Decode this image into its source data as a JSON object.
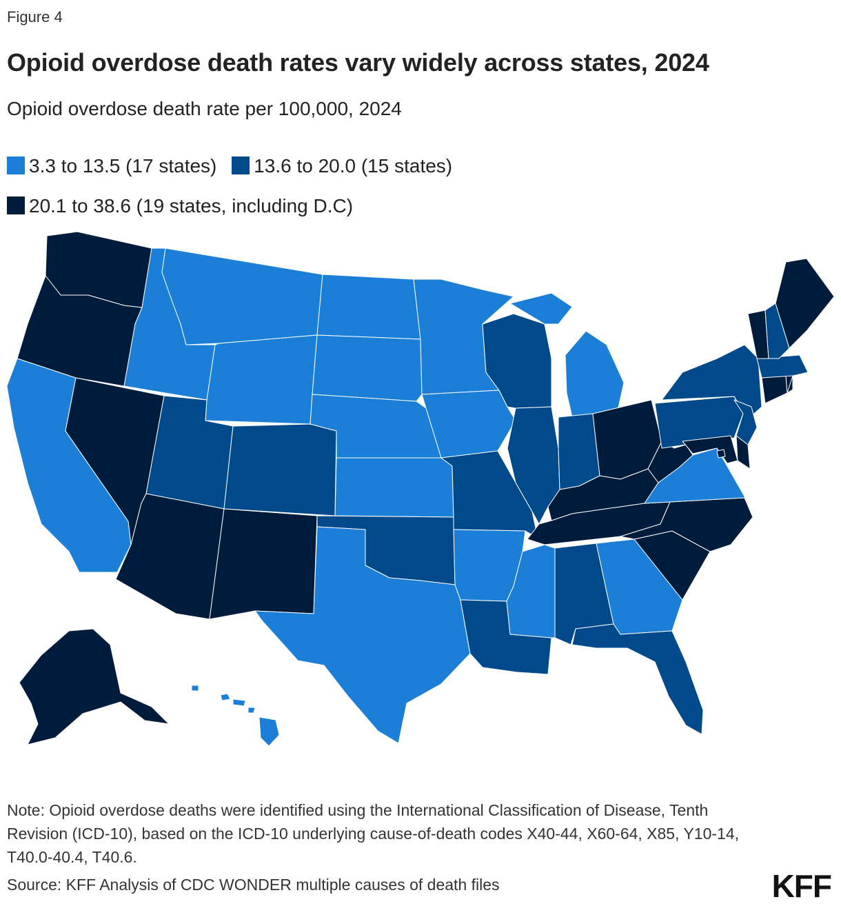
{
  "figure_label": "Figure 4",
  "title": "Opioid overdose death rates vary widely across states, 2024",
  "subtitle": "Opioid overdose death rate per 100,000, 2024",
  "legend": [
    {
      "label": "3.3 to 13.5 (17 states)",
      "color": "#1b7fd8"
    },
    {
      "label": "13.6 to 20.0 (15 states)",
      "color": "#004a8c"
    },
    {
      "label": "20.1 to 38.6 (19 states, including D.C)",
      "color": "#001c3d"
    }
  ],
  "map_data": {
    "type": "choropleth",
    "region": "United States",
    "categories": {
      "low": "3.3 to 13.5",
      "mid": "13.6 to 20.0",
      "high": "20.1 to 38.6"
    },
    "states": {
      "WA": "high",
      "OR": "high",
      "CA": "low",
      "NV": "high",
      "ID": "low",
      "MT": "low",
      "WY": "low",
      "UT": "mid",
      "AZ": "high",
      "CO": "mid",
      "NM": "high",
      "ND": "low",
      "SD": "low",
      "NE": "low",
      "KS": "low",
      "OK": "mid",
      "TX": "low",
      "MN": "low",
      "IA": "low",
      "MO": "mid",
      "AR": "low",
      "LA": "mid",
      "WI": "mid",
      "IL": "mid",
      "MI": "low",
      "IN": "mid",
      "OH": "high",
      "KY": "high",
      "TN": "high",
      "MS": "low",
      "AL": "mid",
      "GA": "low",
      "FL": "mid",
      "SC": "high",
      "NC": "high",
      "VA": "low",
      "WV": "high",
      "PA": "mid",
      "NY": "mid",
      "NJ": "mid",
      "DE": "high",
      "MD": "high",
      "DC": "high",
      "CT": "high",
      "RI": "high",
      "MA": "mid",
      "VT": "high",
      "NH": "mid",
      "ME": "high",
      "AK": "high",
      "HI": "low"
    }
  },
  "note": "Note: Opioid overdose deaths were identified using the International Classification of Disease, Tenth Revision (ICD-10), based on the ICD-10 underlying cause-of-death codes X40-44, X60-64, X85, Y10-14, T40.0-40.4, T40.6.",
  "source": "Source: KFF Analysis of CDC WONDER multiple causes of death files",
  "logo": "KFF"
}
